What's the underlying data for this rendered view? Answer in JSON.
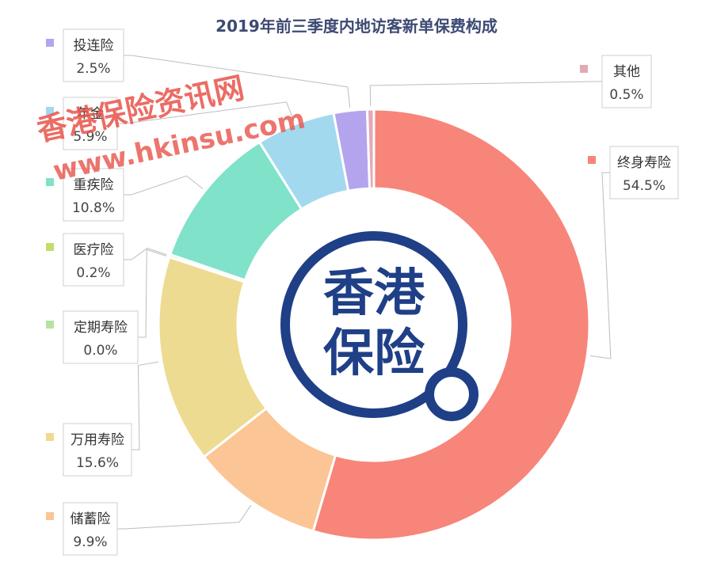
{
  "chart_data": {
    "type": "pie",
    "donut": true,
    "title": "2019年前三季度内地访客新单保费构成",
    "start_angle": "top",
    "direction": "clockwise",
    "slices": [
      {
        "name": "终身寿险",
        "value": 54.5,
        "label": "54.5%",
        "color": "#f7857a"
      },
      {
        "name": "储蓄险",
        "value": 9.9,
        "label": "9.9%",
        "color": "#fbc595"
      },
      {
        "name": "万用寿险",
        "value": 15.6,
        "label": "15.6%",
        "color": "#eedb92"
      },
      {
        "name": "定期寿险",
        "value": 0.0,
        "label": "0.0%",
        "color": "#b6e3a2"
      },
      {
        "name": "医疗险",
        "value": 0.2,
        "label": "0.2%",
        "color": "#c2dd6a"
      },
      {
        "name": "重疾险",
        "value": 10.8,
        "label": "10.8%",
        "color": "#7fe2c9"
      },
      {
        "name": "年金",
        "value": 5.9,
        "label": "5.9%",
        "color": "#a3d9ef"
      },
      {
        "name": "投连险",
        "value": 2.5,
        "label": "2.5%",
        "color": "#b4a4ee"
      },
      {
        "name": "其他",
        "value": 0.5,
        "label": "0.5%",
        "color": "#e3a9b4"
      }
    ]
  },
  "center_logo": {
    "line1": "香港",
    "line2": "保险",
    "color": "#1f3f87"
  },
  "watermark": {
    "line1": "香港保险资讯网",
    "line2": "www.hkinsu.com",
    "color": "#e8534a"
  }
}
